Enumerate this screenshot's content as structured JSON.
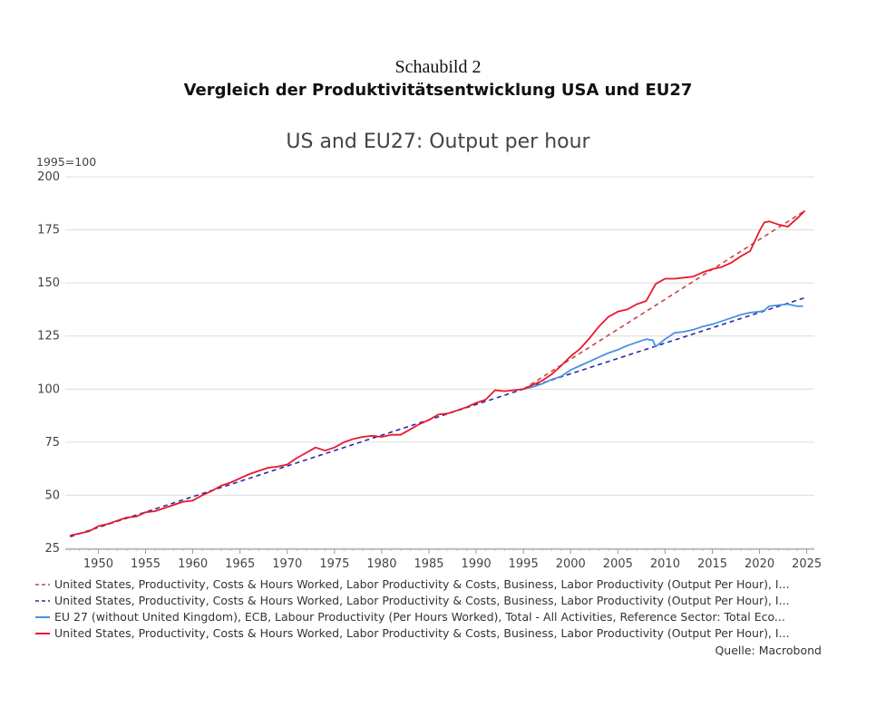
{
  "header": {
    "supertitle": "Schaubild 2",
    "title": "Vergleich der Produktivitätsentwicklung USA und EU27"
  },
  "chart_data": {
    "type": "line",
    "title": "US and EU27: Output per hour",
    "ylabel": "1995=100",
    "xlabel": "",
    "xlim": [
      1946.5,
      2025.8
    ],
    "ylim": [
      25,
      200
    ],
    "yticks": [
      25,
      50,
      75,
      100,
      125,
      150,
      175,
      200
    ],
    "xticks": [
      1950,
      1955,
      1960,
      1965,
      1970,
      1975,
      1980,
      1985,
      1990,
      1995,
      2000,
      2005,
      2010,
      2015,
      2020,
      2025
    ],
    "grid": true,
    "legend_position": "bottom",
    "series": [
      {
        "name": "United States, Productivity, Costs & Hours Worked, Labor Productivity & Costs, Business, Labor Productivity (Output Per Hour), I...",
        "color": "#cc4444",
        "style": "dashed",
        "x": [
          1995,
          2024.8
        ],
        "y": [
          100,
          184
        ]
      },
      {
        "name": "United States, Productivity, Costs & Hours Worked, Labor Productivity & Costs, Business, Labor Productivity (Output Per Hour), I...",
        "color": "#2a2aa8",
        "style": "dashed",
        "x": [
          1947,
          1995,
          2024.8
        ],
        "y": [
          30.5,
          100,
          143
        ]
      },
      {
        "name": "EU 27 (without United Kingdom), ECB, Labour Productivity (Per Hours Worked), Total - All Activities, Reference Sector: Total Eco...",
        "color": "#4a90e2",
        "style": "solid",
        "x": [
          1995,
          1996,
          1997,
          1998,
          1999,
          2000,
          2001,
          2002,
          2003,
          2004,
          2005,
          2006,
          2007,
          2008,
          2008.7,
          2009,
          2010,
          2011,
          2012,
          2013,
          2014,
          2015,
          2016,
          2017,
          2018,
          2019,
          2020,
          2020.5,
          2021,
          2022,
          2023,
          2024,
          2024.6
        ],
        "y": [
          100,
          101,
          102.5,
          104.5,
          106,
          109,
          111,
          113,
          115,
          117,
          118.5,
          120.5,
          122,
          123.5,
          123,
          120,
          123.5,
          126.5,
          127,
          128,
          129.5,
          130.5,
          132,
          133.5,
          135,
          136,
          136.5,
          137,
          139,
          139.5,
          140,
          139,
          139
        ]
      },
      {
        "name": "United States, Productivity, Costs & Hours Worked, Labor Productivity & Costs, Business, Labor Productivity (Output Per Hour), I...",
        "color": "#e8192c",
        "style": "solid",
        "x": [
          1947,
          1948,
          1949,
          1950,
          1951,
          1952,
          1953,
          1954,
          1955,
          1956,
          1957,
          1958,
          1959,
          1960,
          1961,
          1962,
          1963,
          1964,
          1965,
          1966,
          1967,
          1968,
          1969,
          1970,
          1971,
          1972,
          1973,
          1974,
          1975,
          1976,
          1977,
          1978,
          1979,
          1980,
          1981,
          1982,
          1983,
          1984,
          1985,
          1986,
          1987,
          1988,
          1989,
          1990,
          1991,
          1992,
          1993,
          1994,
          1995,
          1996,
          1997,
          1998,
          1999,
          2000,
          2001,
          2002,
          2003,
          2004,
          2005,
          2006,
          2007,
          2008,
          2009,
          2010,
          2011,
          2012,
          2013,
          2014,
          2015,
          2016,
          2017,
          2018,
          2019,
          2020,
          2020.5,
          2021,
          2022,
          2023,
          2024,
          2024.8
        ],
        "y": [
          31,
          32,
          33,
          35.5,
          36.5,
          38,
          39.5,
          40,
          42,
          42.5,
          44,
          45.5,
          47,
          47.5,
          50,
          52,
          54.5,
          56,
          58,
          60,
          61.5,
          63,
          63.5,
          64.5,
          67.5,
          70,
          72.5,
          71,
          72.5,
          75,
          76.5,
          77.5,
          78,
          77.5,
          78.5,
          78.5,
          81,
          83.5,
          85.5,
          88,
          88.5,
          90,
          91.5,
          93.5,
          95,
          99.5,
          99,
          99.5,
          100,
          102,
          104,
          107,
          111,
          115.5,
          119,
          124,
          129.5,
          134,
          136.5,
          137.5,
          140,
          141.5,
          149.5,
          152,
          152,
          152.5,
          153,
          155,
          156.5,
          157.5,
          159.5,
          162.5,
          165,
          174.5,
          178.5,
          179,
          177.5,
          176.5,
          180.5,
          184
        ]
      }
    ]
  },
  "source": "Quelle: Macrobond"
}
